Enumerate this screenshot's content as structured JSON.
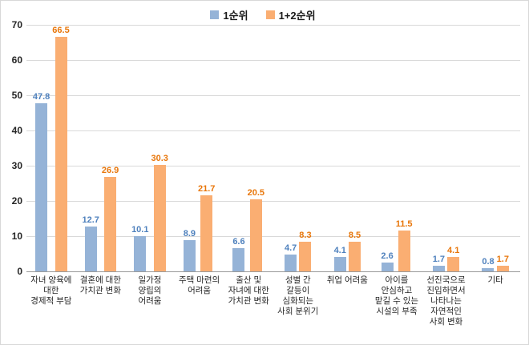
{
  "chart_data": {
    "type": "bar",
    "title": "",
    "xlabel": "",
    "ylabel": "",
    "ylim": [
      0,
      70
    ],
    "ytick_step": 10,
    "grid": true,
    "legend_position": "top",
    "categories": [
      [
        "자녀 양육에",
        "대한",
        "경제적 부담"
      ],
      [
        "결혼에 대한",
        "가치관 변화"
      ],
      [
        "일가정",
        "양립의",
        "어려움"
      ],
      [
        "주택 마련의",
        "어려움"
      ],
      [
        "출산 및",
        "자녀에 대한",
        "가치관 변화"
      ],
      [
        "성별 간",
        "갈등이",
        "심화되는",
        "사회 분위기"
      ],
      [
        "취업 어려움"
      ],
      [
        "아이를",
        "안심하고",
        "맡길 수 있는",
        "시설의 부족"
      ],
      [
        "선진국으로",
        "진입하면서",
        "나타나는",
        "자연적인",
        "사회 변화"
      ],
      [
        "기타"
      ]
    ],
    "series": [
      {
        "name": "1순위",
        "color": "#95B3D7",
        "label_color": "#4F81BD",
        "values": [
          47.8,
          12.7,
          10.1,
          8.9,
          6.6,
          4.7,
          4.1,
          2.6,
          1.7,
          0.8
        ]
      },
      {
        "name": "1+2순위",
        "color": "#FAAE72",
        "label_color": "#E8760A",
        "values": [
          66.5,
          26.9,
          30.3,
          21.7,
          20.5,
          8.3,
          8.5,
          11.5,
          4.1,
          1.7
        ]
      }
    ]
  }
}
